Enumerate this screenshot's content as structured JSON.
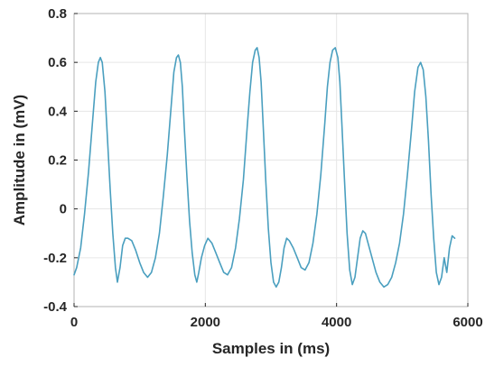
{
  "chart_data": {
    "type": "line",
    "title": "",
    "xlabel": "Samples in (ms)",
    "ylabel": "Amplitude in (mV)",
    "xlim": [
      0,
      6000
    ],
    "ylim": [
      -0.4,
      0.8
    ],
    "xticks": [
      0,
      2000,
      4000,
      6000
    ],
    "yticks": [
      -0.4,
      -0.2,
      0,
      0.2,
      0.4,
      0.6,
      0.8
    ],
    "xtick_labels": [
      "0",
      "2000",
      "4000",
      "6000"
    ],
    "ytick_labels": [
      "-0.4",
      "-0.2",
      "0",
      "0.2",
      "0.4",
      "0.6",
      "0.8"
    ],
    "grid": true,
    "legend": "none",
    "colors": {
      "series": "#4a9fbf",
      "axes": "#262626",
      "grid": "#e6e6e6"
    },
    "series": [
      {
        "x": [
          0,
          40,
          100,
          160,
          220,
          280,
          330,
          370,
          400,
          430,
          470,
          510,
          550,
          590,
          630,
          660,
          700,
          740,
          780,
          820,
          880,
          940,
          1000,
          1060,
          1120,
          1180,
          1240,
          1300,
          1360,
          1420,
          1480,
          1520,
          1560,
          1590,
          1620,
          1650,
          1680,
          1720,
          1760,
          1800,
          1840,
          1870,
          1900,
          1940,
          1990,
          2040,
          2100,
          2160,
          2220,
          2280,
          2340,
          2400,
          2460,
          2520,
          2580,
          2640,
          2680,
          2720,
          2760,
          2790,
          2820,
          2850,
          2880,
          2920,
          2960,
          3000,
          3040,
          3080,
          3120,
          3160,
          3200,
          3240,
          3280,
          3340,
          3400,
          3460,
          3520,
          3580,
          3640,
          3700,
          3760,
          3820,
          3860,
          3900,
          3940,
          3980,
          4020,
          4050,
          4080,
          4120,
          4160,
          4200,
          4240,
          4280,
          4320,
          4360,
          4400,
          4440,
          4480,
          4540,
          4600,
          4660,
          4720,
          4780,
          4840,
          4900,
          4960,
          5020,
          5080,
          5140,
          5190,
          5240,
          5280,
          5320,
          5360,
          5400,
          5440,
          5480,
          5520,
          5560,
          5600,
          5640,
          5680,
          5720,
          5760,
          5800
        ],
        "y": [
          -0.27,
          -0.24,
          -0.16,
          -0.02,
          0.15,
          0.35,
          0.52,
          0.6,
          0.62,
          0.6,
          0.48,
          0.28,
          0.08,
          -0.1,
          -0.24,
          -0.3,
          -0.24,
          -0.15,
          -0.12,
          -0.12,
          -0.13,
          -0.17,
          -0.22,
          -0.26,
          -0.28,
          -0.26,
          -0.2,
          -0.1,
          0.05,
          0.22,
          0.42,
          0.56,
          0.62,
          0.63,
          0.6,
          0.5,
          0.33,
          0.13,
          -0.05,
          -0.18,
          -0.27,
          -0.3,
          -0.26,
          -0.2,
          -0.15,
          -0.12,
          -0.14,
          -0.18,
          -0.22,
          -0.26,
          -0.27,
          -0.24,
          -0.16,
          -0.04,
          0.12,
          0.34,
          0.48,
          0.6,
          0.65,
          0.66,
          0.62,
          0.52,
          0.35,
          0.12,
          -0.08,
          -0.22,
          -0.3,
          -0.32,
          -0.3,
          -0.24,
          -0.16,
          -0.12,
          -0.13,
          -0.16,
          -0.2,
          -0.24,
          -0.25,
          -0.22,
          -0.14,
          -0.02,
          0.14,
          0.35,
          0.5,
          0.6,
          0.65,
          0.66,
          0.62,
          0.52,
          0.35,
          0.12,
          -0.1,
          -0.25,
          -0.31,
          -0.28,
          -0.2,
          -0.12,
          -0.09,
          -0.1,
          -0.14,
          -0.2,
          -0.26,
          -0.3,
          -0.32,
          -0.31,
          -0.28,
          -0.22,
          -0.14,
          -0.02,
          0.14,
          0.32,
          0.48,
          0.58,
          0.6,
          0.57,
          0.46,
          0.28,
          0.06,
          -0.12,
          -0.26,
          -0.31,
          -0.28,
          -0.2,
          -0.26,
          -0.16,
          -0.11,
          -0.12
        ]
      }
    ]
  }
}
